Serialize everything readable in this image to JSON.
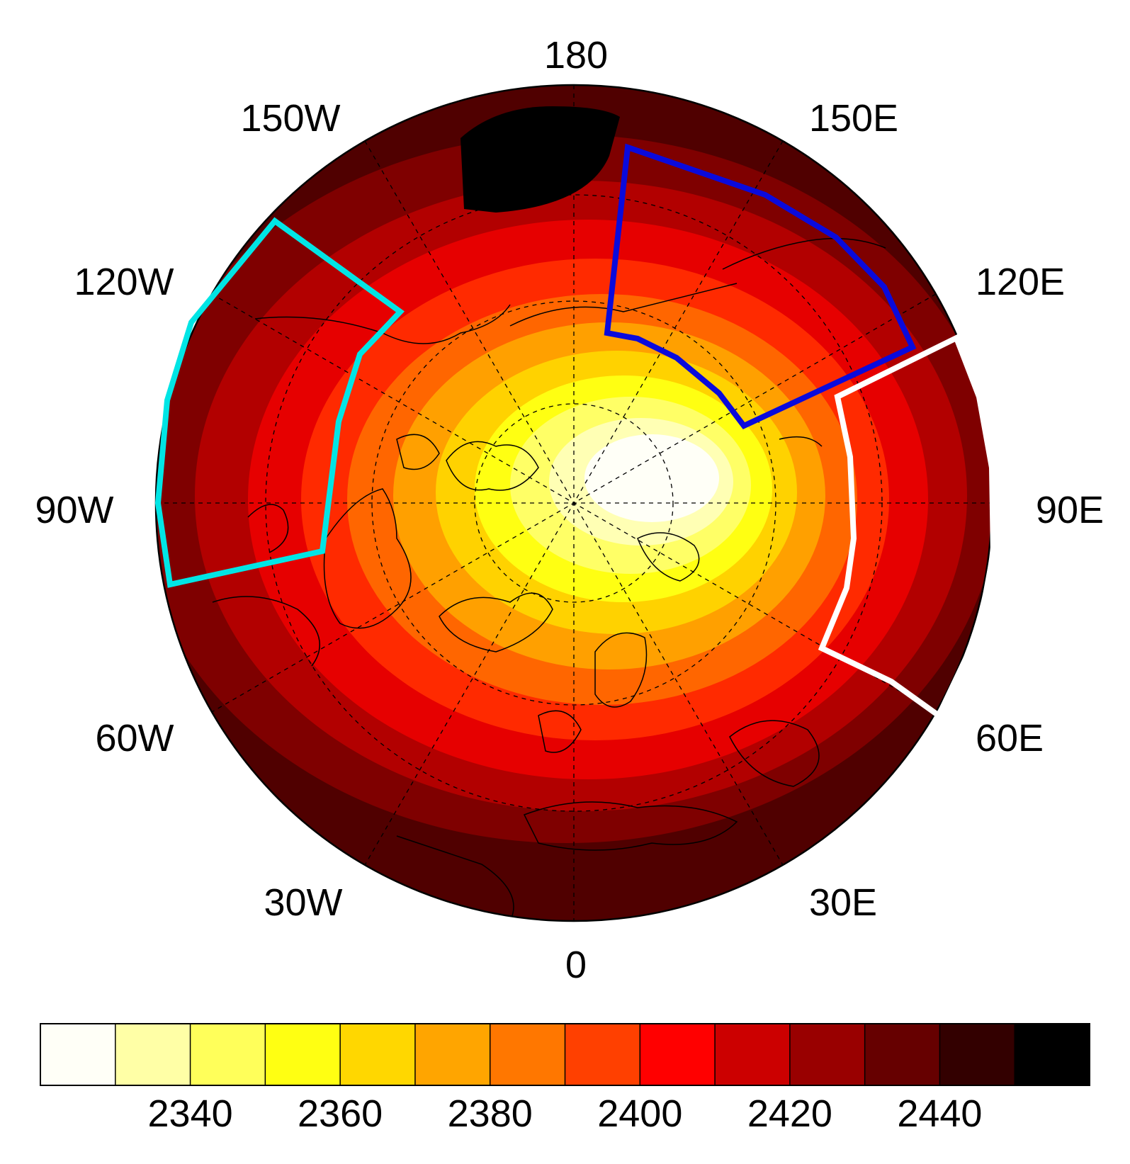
{
  "map": {
    "projection": "north-polar-stereographic",
    "longitude_labels": [
      "180",
      "150E",
      "120E",
      "90E",
      "60E",
      "30E",
      "0",
      "30W",
      "60W",
      "90W",
      "120W",
      "150W"
    ],
    "field_colors": [
      "#000000",
      "#2a0000",
      "#500000",
      "#7f0000",
      "#b20000",
      "#e60000",
      "#ff2a00",
      "#ff6600",
      "#ffa000",
      "#ffd200",
      "#ffff12",
      "#ffff66",
      "#ffffb4",
      "#fffff7"
    ],
    "region_boxes": [
      {
        "color": "#00e5e5",
        "name": "cyan-box"
      },
      {
        "color": "#0a0adc",
        "name": "blue-box"
      },
      {
        "color": "#ffffff",
        "name": "white-box"
      }
    ]
  },
  "colorbar": {
    "colors": [
      "#fffff7",
      "#ffffa6",
      "#ffff5a",
      "#ffff12",
      "#ffd700",
      "#ffa500",
      "#ff7700",
      "#ff4000",
      "#ff0000",
      "#cc0000",
      "#990000",
      "#660000",
      "#330000",
      "#000000"
    ],
    "tick_labels": [
      "2340",
      "2360",
      "2380",
      "2400",
      "2420",
      "2440"
    ]
  }
}
